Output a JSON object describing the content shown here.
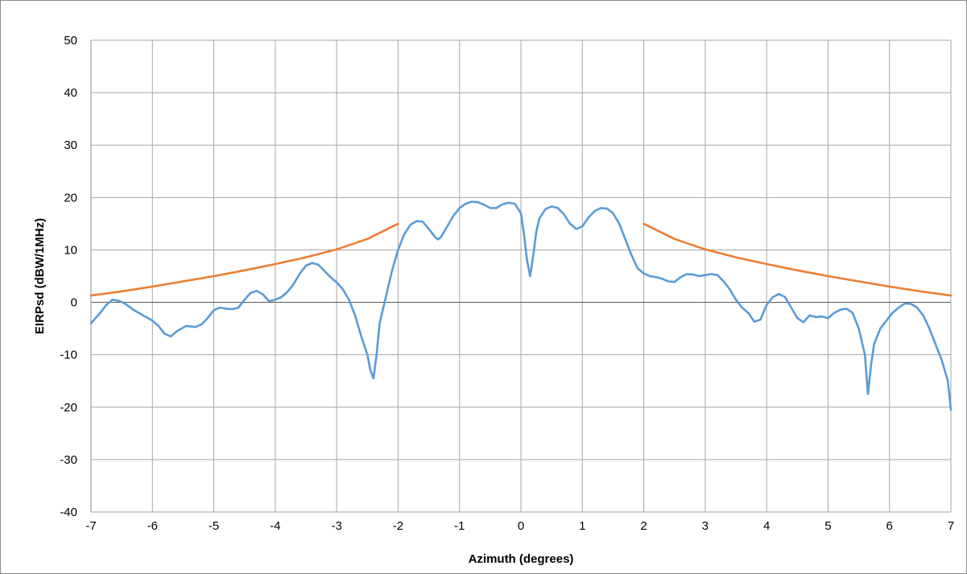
{
  "chart_data": {
    "type": "line",
    "title": "",
    "xlabel": "Azimuth (degrees)",
    "ylabel": "EIRPsd (dBW/1MHz)",
    "xlim": [
      -7,
      7
    ],
    "ylim": [
      -40,
      50
    ],
    "xticks": [
      -7,
      -6,
      -5,
      -4,
      -3,
      -2,
      -1,
      0,
      1,
      2,
      3,
      4,
      5,
      6,
      7
    ],
    "yticks": [
      -40,
      -30,
      -20,
      -10,
      0,
      10,
      20,
      30,
      40,
      50
    ],
    "grid": true,
    "legend": "none",
    "colors": {
      "measured": "#5b9bd5",
      "mask": "#ed7d31",
      "grid": "#a6a6a6"
    },
    "series": [
      {
        "role": "measured",
        "color": "#5b9bd5",
        "points": [
          [
            -7.0,
            -4.0
          ],
          [
            -6.85,
            -2.0
          ],
          [
            -6.75,
            -0.5
          ],
          [
            -6.65,
            0.5
          ],
          [
            -6.55,
            0.3
          ],
          [
            -6.45,
            -0.2
          ],
          [
            -6.3,
            -1.5
          ],
          [
            -6.15,
            -2.5
          ],
          [
            -6.0,
            -3.5
          ],
          [
            -5.9,
            -4.5
          ],
          [
            -5.8,
            -6.0
          ],
          [
            -5.7,
            -6.5
          ],
          [
            -5.6,
            -5.5
          ],
          [
            -5.45,
            -4.5
          ],
          [
            -5.3,
            -4.7
          ],
          [
            -5.2,
            -4.2
          ],
          [
            -5.1,
            -3.0
          ],
          [
            -5.0,
            -1.5
          ],
          [
            -4.9,
            -1.0
          ],
          [
            -4.8,
            -1.2
          ],
          [
            -4.7,
            -1.3
          ],
          [
            -4.6,
            -1.0
          ],
          [
            -4.5,
            0.5
          ],
          [
            -4.4,
            1.8
          ],
          [
            -4.3,
            2.2
          ],
          [
            -4.2,
            1.5
          ],
          [
            -4.1,
            0.2
          ],
          [
            -4.0,
            0.5
          ],
          [
            -3.9,
            1.0
          ],
          [
            -3.8,
            2.0
          ],
          [
            -3.7,
            3.5
          ],
          [
            -3.6,
            5.5
          ],
          [
            -3.5,
            7.0
          ],
          [
            -3.4,
            7.5
          ],
          [
            -3.3,
            7.2
          ],
          [
            -3.2,
            6.0
          ],
          [
            -3.1,
            4.8
          ],
          [
            -3.0,
            3.8
          ],
          [
            -2.9,
            2.5
          ],
          [
            -2.8,
            0.5
          ],
          [
            -2.7,
            -2.5
          ],
          [
            -2.6,
            -6.5
          ],
          [
            -2.5,
            -10.0
          ],
          [
            -2.45,
            -13.0
          ],
          [
            -2.4,
            -14.5
          ],
          [
            -2.35,
            -10.0
          ],
          [
            -2.3,
            -4.0
          ],
          [
            -2.2,
            1.0
          ],
          [
            -2.1,
            6.0
          ],
          [
            -2.0,
            10.0
          ],
          [
            -1.9,
            13.0
          ],
          [
            -1.8,
            14.8
          ],
          [
            -1.7,
            15.5
          ],
          [
            -1.6,
            15.4
          ],
          [
            -1.5,
            14.0
          ],
          [
            -1.4,
            12.5
          ],
          [
            -1.35,
            12.0
          ],
          [
            -1.3,
            12.5
          ],
          [
            -1.2,
            14.5
          ],
          [
            -1.1,
            16.5
          ],
          [
            -1.0,
            18.0
          ],
          [
            -0.9,
            18.8
          ],
          [
            -0.8,
            19.2
          ],
          [
            -0.7,
            19.1
          ],
          [
            -0.6,
            18.6
          ],
          [
            -0.5,
            18.0
          ],
          [
            -0.4,
            18.0
          ],
          [
            -0.3,
            18.7
          ],
          [
            -0.2,
            19.0
          ],
          [
            -0.1,
            18.8
          ],
          [
            0.0,
            17.0
          ],
          [
            0.05,
            13.0
          ],
          [
            0.1,
            8.0
          ],
          [
            0.15,
            5.0
          ],
          [
            0.2,
            9.0
          ],
          [
            0.25,
            13.5
          ],
          [
            0.3,
            16.0
          ],
          [
            0.4,
            17.8
          ],
          [
            0.5,
            18.3
          ],
          [
            0.6,
            18.0
          ],
          [
            0.7,
            16.8
          ],
          [
            0.8,
            15.0
          ],
          [
            0.9,
            14.0
          ],
          [
            1.0,
            14.5
          ],
          [
            1.1,
            16.2
          ],
          [
            1.2,
            17.4
          ],
          [
            1.3,
            18.0
          ],
          [
            1.4,
            17.9
          ],
          [
            1.5,
            17.0
          ],
          [
            1.6,
            15.0
          ],
          [
            1.7,
            12.0
          ],
          [
            1.8,
            9.0
          ],
          [
            1.9,
            6.5
          ],
          [
            2.0,
            5.5
          ],
          [
            2.1,
            5.0
          ],
          [
            2.2,
            4.8
          ],
          [
            2.3,
            4.5
          ],
          [
            2.4,
            4.0
          ],
          [
            2.5,
            3.9
          ],
          [
            2.6,
            4.8
          ],
          [
            2.7,
            5.4
          ],
          [
            2.8,
            5.3
          ],
          [
            2.9,
            5.0
          ],
          [
            3.0,
            5.2
          ],
          [
            3.1,
            5.4
          ],
          [
            3.2,
            5.2
          ],
          [
            3.3,
            4.0
          ],
          [
            3.4,
            2.5
          ],
          [
            3.5,
            0.5
          ],
          [
            3.6,
            -1.0
          ],
          [
            3.7,
            -2.0
          ],
          [
            3.8,
            -3.7
          ],
          [
            3.9,
            -3.3
          ],
          [
            4.0,
            -0.5
          ],
          [
            4.1,
            1.0
          ],
          [
            4.2,
            1.6
          ],
          [
            4.3,
            1.0
          ],
          [
            4.4,
            -1.0
          ],
          [
            4.5,
            -3.0
          ],
          [
            4.6,
            -3.8
          ],
          [
            4.7,
            -2.5
          ],
          [
            4.8,
            -2.8
          ],
          [
            4.9,
            -2.7
          ],
          [
            5.0,
            -3.0
          ],
          [
            5.1,
            -2.0
          ],
          [
            5.2,
            -1.4
          ],
          [
            5.3,
            -1.2
          ],
          [
            5.4,
            -2.0
          ],
          [
            5.5,
            -5.0
          ],
          [
            5.6,
            -10.0
          ],
          [
            5.65,
            -17.5
          ],
          [
            5.7,
            -12.0
          ],
          [
            5.75,
            -8.0
          ],
          [
            5.85,
            -5.0
          ],
          [
            5.95,
            -3.5
          ],
          [
            6.05,
            -2.0
          ],
          [
            6.15,
            -1.0
          ],
          [
            6.25,
            -0.2
          ],
          [
            6.35,
            -0.3
          ],
          [
            6.45,
            -1.0
          ],
          [
            6.55,
            -2.5
          ],
          [
            6.65,
            -5.0
          ],
          [
            6.75,
            -8.0
          ],
          [
            6.85,
            -11.0
          ],
          [
            6.95,
            -15.0
          ],
          [
            7.0,
            -20.5
          ]
        ]
      },
      {
        "role": "mask",
        "color": "#ed7d31",
        "points": [
          [
            -7.0,
            1.3
          ],
          [
            -6.5,
            2.1
          ],
          [
            -6.0,
            3.0
          ],
          [
            -5.5,
            4.0
          ],
          [
            -5.0,
            5.0
          ],
          [
            -4.5,
            6.1
          ],
          [
            -4.0,
            7.3
          ],
          [
            -3.5,
            8.6
          ],
          [
            -3.0,
            10.1
          ],
          [
            -2.5,
            12.1
          ],
          [
            -2.0,
            15.0
          ]
        ]
      },
      {
        "role": "mask",
        "color": "#ed7d31",
        "points": [
          [
            2.0,
            15.0
          ],
          [
            2.5,
            12.1
          ],
          [
            3.0,
            10.1
          ],
          [
            3.5,
            8.6
          ],
          [
            4.0,
            7.3
          ],
          [
            4.5,
            6.1
          ],
          [
            5.0,
            5.0
          ],
          [
            5.5,
            4.0
          ],
          [
            6.0,
            3.0
          ],
          [
            6.5,
            2.1
          ],
          [
            7.0,
            1.3
          ]
        ]
      }
    ]
  }
}
